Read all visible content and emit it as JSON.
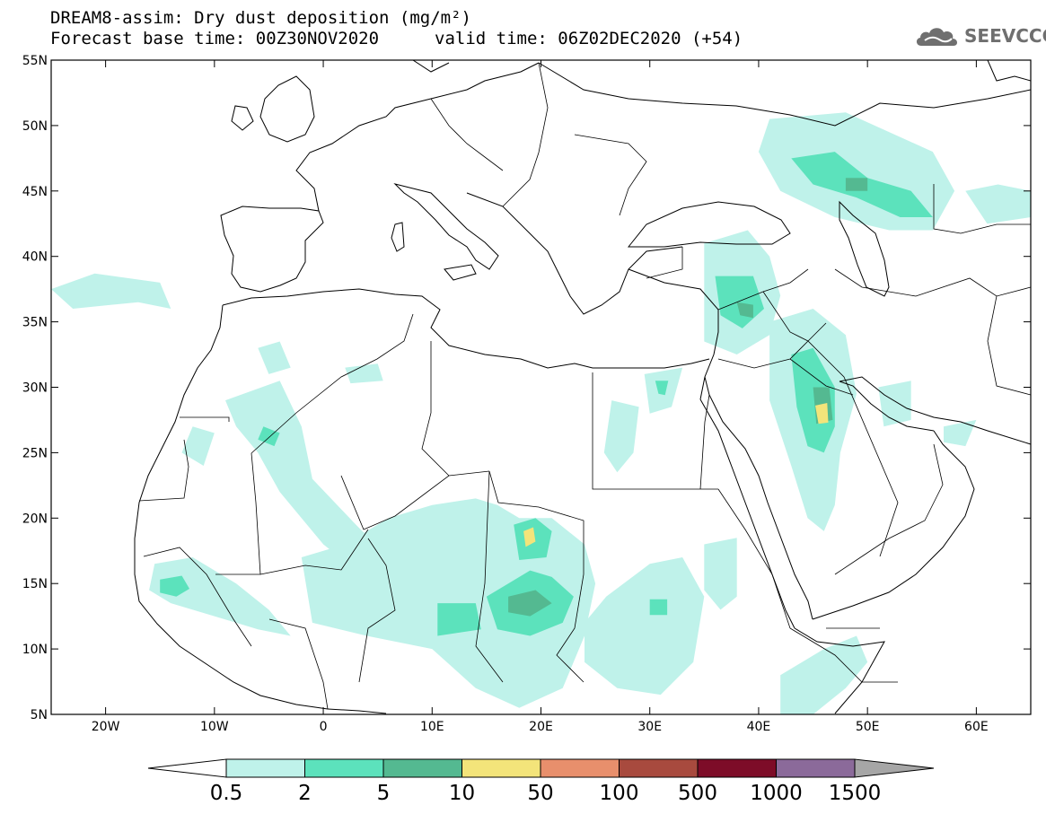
{
  "header": {
    "title_line1": "DREAM8-assim: Dry dust deposition (mg/m²)",
    "base_time": "Forecast base time: 00Z30NOV2020",
    "valid_time": "valid time: 06Z02DEC2020 (+54)"
  },
  "logo": {
    "text": "SEEVCCC",
    "icon": "cloud-icon"
  },
  "map": {
    "extent": {
      "lon": [
        -25,
        65
      ],
      "lat": [
        5,
        55
      ]
    },
    "lat_ticks": [
      {
        "value": 5,
        "label": "5N"
      },
      {
        "value": 10,
        "label": "10N"
      },
      {
        "value": 15,
        "label": "15N"
      },
      {
        "value": 20,
        "label": "20N"
      },
      {
        "value": 25,
        "label": "25N"
      },
      {
        "value": 30,
        "label": "30N"
      },
      {
        "value": 35,
        "label": "35N"
      },
      {
        "value": 40,
        "label": "40N"
      },
      {
        "value": 45,
        "label": "45N"
      },
      {
        "value": 50,
        "label": "50N"
      },
      {
        "value": 55,
        "label": "55N"
      }
    ],
    "lon_ticks": [
      {
        "value": -20,
        "label": "20W"
      },
      {
        "value": -10,
        "label": "10W"
      },
      {
        "value": 0,
        "label": "0"
      },
      {
        "value": 10,
        "label": "10E"
      },
      {
        "value": 20,
        "label": "20E"
      },
      {
        "value": 30,
        "label": "30E"
      },
      {
        "value": 40,
        "label": "40E"
      },
      {
        "value": 50,
        "label": "50E"
      },
      {
        "value": 60,
        "label": "60E"
      }
    ],
    "dust_regions": [
      {
        "level": 0,
        "pts": [
          [
            -15.5,
            16.5
          ],
          [
            -12,
            17
          ],
          [
            -8,
            15
          ],
          [
            -5,
            13
          ],
          [
            -3,
            11
          ],
          [
            -6,
            11.5
          ],
          [
            -10,
            12.5
          ],
          [
            -14,
            13.5
          ],
          [
            -16,
            14.5
          ]
        ]
      },
      {
        "level": 1,
        "pts": [
          [
            -15,
            15.3
          ],
          [
            -13,
            15.6
          ],
          [
            -12.3,
            14.6
          ],
          [
            -13.5,
            14
          ],
          [
            -15,
            14.3
          ]
        ]
      },
      {
        "level": 0,
        "pts": [
          [
            -9,
            29
          ],
          [
            -4,
            30.5
          ],
          [
            -2,
            27
          ],
          [
            -1,
            23
          ],
          [
            3,
            19.5
          ],
          [
            6,
            17
          ],
          [
            9,
            14.5
          ],
          [
            7,
            14
          ],
          [
            3,
            16
          ],
          [
            0,
            18
          ],
          [
            -4,
            22
          ],
          [
            -6,
            25
          ],
          [
            -8,
            27
          ]
        ]
      },
      {
        "level": 1,
        "pts": [
          [
            -5.5,
            27
          ],
          [
            -4,
            26.5
          ],
          [
            -4.5,
            25.5
          ],
          [
            -6,
            26
          ]
        ]
      },
      {
        "level": 0,
        "pts": [
          [
            -12,
            27
          ],
          [
            -10,
            26.5
          ],
          [
            -11,
            24
          ],
          [
            -13,
            25
          ]
        ]
      },
      {
        "level": 0,
        "pts": [
          [
            -6,
            33
          ],
          [
            -4,
            33.5
          ],
          [
            -3,
            31.5
          ],
          [
            -5,
            31
          ]
        ]
      },
      {
        "level": 0,
        "pts": [
          [
            2,
            31.5
          ],
          [
            5,
            31.8
          ],
          [
            5.5,
            30.5
          ],
          [
            2.5,
            30.3
          ]
        ]
      },
      {
        "level": 0,
        "pts": [
          [
            -2,
            17
          ],
          [
            2,
            18
          ],
          [
            6,
            20
          ],
          [
            10,
            21
          ],
          [
            14,
            21.5
          ],
          [
            16,
            21
          ],
          [
            18,
            20
          ],
          [
            21,
            20
          ],
          [
            24,
            18
          ],
          [
            25,
            15
          ],
          [
            24,
            11
          ],
          [
            22,
            7
          ],
          [
            18,
            5.5
          ],
          [
            14,
            7
          ],
          [
            10,
            10
          ],
          [
            4,
            11
          ],
          [
            -1,
            12
          ]
        ]
      },
      {
        "level": 1,
        "pts": [
          [
            15,
            14
          ],
          [
            17,
            15
          ],
          [
            19,
            16
          ],
          [
            21,
            15.5
          ],
          [
            23,
            14
          ],
          [
            22,
            12
          ],
          [
            19,
            11
          ],
          [
            16,
            11.5
          ]
        ]
      },
      {
        "level": 1,
        "pts": [
          [
            10.5,
            13.5
          ],
          [
            14,
            13.5
          ],
          [
            14.5,
            11.5
          ],
          [
            10.5,
            11
          ]
        ]
      },
      {
        "level": 2,
        "pts": [
          [
            17,
            14
          ],
          [
            19.5,
            14.5
          ],
          [
            21,
            13.5
          ],
          [
            19,
            12.5
          ],
          [
            17,
            12.8
          ]
        ]
      },
      {
        "level": 1,
        "pts": [
          [
            17.5,
            19.5
          ],
          [
            19.5,
            20
          ],
          [
            21,
            19
          ],
          [
            20.5,
            17
          ],
          [
            18,
            16.8
          ]
        ]
      },
      {
        "level": 3,
        "pts": [
          [
            18.4,
            19
          ],
          [
            19.3,
            19.3
          ],
          [
            19.5,
            18.2
          ],
          [
            18.6,
            17.8
          ]
        ]
      },
      {
        "level": 0,
        "pts": [
          [
            26,
            14
          ],
          [
            30,
            16.5
          ],
          [
            33,
            17
          ],
          [
            35,
            14
          ],
          [
            34,
            9
          ],
          [
            31,
            6.5
          ],
          [
            27,
            7
          ],
          [
            24,
            9
          ],
          [
            24,
            12
          ]
        ]
      },
      {
        "level": 1,
        "pts": [
          [
            30,
            13.8
          ],
          [
            31.6,
            13.8
          ],
          [
            31.6,
            12.6
          ],
          [
            30,
            12.6
          ]
        ]
      },
      {
        "level": 0,
        "pts": [
          [
            35,
            18
          ],
          [
            38,
            18.5
          ],
          [
            38,
            14
          ],
          [
            36.5,
            13
          ],
          [
            35,
            14.5
          ]
        ]
      },
      {
        "level": 0,
        "pts": [
          [
            26.5,
            29
          ],
          [
            29,
            28.5
          ],
          [
            28.5,
            25
          ],
          [
            27,
            23.5
          ],
          [
            25.8,
            25
          ]
        ]
      },
      {
        "level": 0,
        "pts": [
          [
            29.5,
            31
          ],
          [
            33,
            31.5
          ],
          [
            32,
            28.5
          ],
          [
            30,
            28
          ]
        ]
      },
      {
        "level": 1,
        "pts": [
          [
            30.5,
            30.5
          ],
          [
            31.7,
            30.5
          ],
          [
            31.4,
            29.4
          ],
          [
            30.8,
            29.5
          ]
        ]
      },
      {
        "level": 0,
        "pts": [
          [
            35,
            41
          ],
          [
            39,
            42
          ],
          [
            41,
            40
          ],
          [
            42,
            37
          ],
          [
            41,
            34
          ],
          [
            38,
            32.5
          ],
          [
            35,
            33.5
          ]
        ]
      },
      {
        "level": 1,
        "pts": [
          [
            36,
            38.5
          ],
          [
            39.5,
            38.5
          ],
          [
            40.5,
            36
          ],
          [
            38.5,
            34.5
          ],
          [
            36.5,
            35.5
          ]
        ]
      },
      {
        "level": 2,
        "pts": [
          [
            38,
            36.5
          ],
          [
            39.5,
            36.3
          ],
          [
            39.5,
            35.3
          ],
          [
            38.3,
            35.5
          ]
        ]
      },
      {
        "level": 0,
        "pts": [
          [
            41,
            35
          ],
          [
            45,
            36
          ],
          [
            48,
            34
          ],
          [
            49,
            29.5
          ],
          [
            47.5,
            25
          ],
          [
            47,
            21
          ],
          [
            46,
            19
          ],
          [
            44.5,
            20
          ],
          [
            43,
            24
          ],
          [
            41,
            29
          ]
        ]
      },
      {
        "level": 1,
        "pts": [
          [
            43,
            32.5
          ],
          [
            45,
            33
          ],
          [
            47,
            30
          ],
          [
            47,
            27
          ],
          [
            46,
            25
          ],
          [
            44.5,
            25.5
          ],
          [
            43.5,
            28.5
          ]
        ]
      },
      {
        "level": 2,
        "pts": [
          [
            45,
            30
          ],
          [
            46.5,
            30
          ],
          [
            46.8,
            27.5
          ],
          [
            45.3,
            27.2
          ]
        ]
      },
      {
        "level": 3,
        "pts": [
          [
            45.2,
            28.6
          ],
          [
            46.3,
            28.8
          ],
          [
            46.4,
            27.3
          ],
          [
            45.5,
            27.2
          ]
        ]
      },
      {
        "level": 0,
        "pts": [
          [
            51,
            30
          ],
          [
            54,
            30.5
          ],
          [
            54,
            27.5
          ],
          [
            51.5,
            27
          ]
        ]
      },
      {
        "level": 0,
        "pts": [
          [
            57,
            27
          ],
          [
            60,
            27.5
          ],
          [
            59,
            25.5
          ],
          [
            57,
            25.8
          ]
        ]
      },
      {
        "level": 0,
        "pts": [
          [
            42,
            8
          ],
          [
            46,
            10
          ],
          [
            49,
            11
          ],
          [
            50,
            9
          ],
          [
            48,
            7
          ],
          [
            45,
            5
          ],
          [
            42,
            5
          ]
        ]
      },
      {
        "level": 0,
        "pts": [
          [
            41,
            50.5
          ],
          [
            48,
            51
          ],
          [
            56,
            48
          ],
          [
            58,
            45
          ],
          [
            56,
            42
          ],
          [
            52,
            42
          ],
          [
            47,
            43
          ],
          [
            42,
            45
          ],
          [
            40,
            48
          ]
        ]
      },
      {
        "level": 1,
        "pts": [
          [
            43,
            47.5
          ],
          [
            47,
            48
          ],
          [
            50,
            46
          ],
          [
            54,
            45
          ],
          [
            56,
            43
          ],
          [
            53,
            43
          ],
          [
            49,
            44.5
          ],
          [
            45,
            45.5
          ]
        ]
      },
      {
        "level": 2,
        "pts": [
          [
            48,
            46
          ],
          [
            50,
            46
          ],
          [
            50,
            45
          ],
          [
            48,
            45
          ]
        ]
      },
      {
        "level": 0,
        "pts": [
          [
            59,
            45
          ],
          [
            62,
            45.5
          ],
          [
            65,
            45
          ],
          [
            65,
            43
          ],
          [
            61,
            42.5
          ]
        ]
      },
      {
        "level": 0,
        "pts": [
          [
            -25,
            37.5
          ],
          [
            -21,
            38.7
          ],
          [
            -15,
            38
          ],
          [
            -14,
            36
          ],
          [
            -17,
            36.5
          ],
          [
            -23,
            36
          ]
        ]
      }
    ]
  },
  "colorbar": {
    "labels": [
      "0.5",
      "2",
      "5",
      "10",
      "50",
      "100",
      "500",
      "1000",
      "1500"
    ],
    "colors": [
      "#ffffff",
      "#bff2ea",
      "#5ce2bc",
      "#54b991",
      "#f3e47a",
      "#e88f6c",
      "#a84a3e",
      "#7d0c28",
      "#8b6a9a",
      "#a6a6a6"
    ]
  }
}
